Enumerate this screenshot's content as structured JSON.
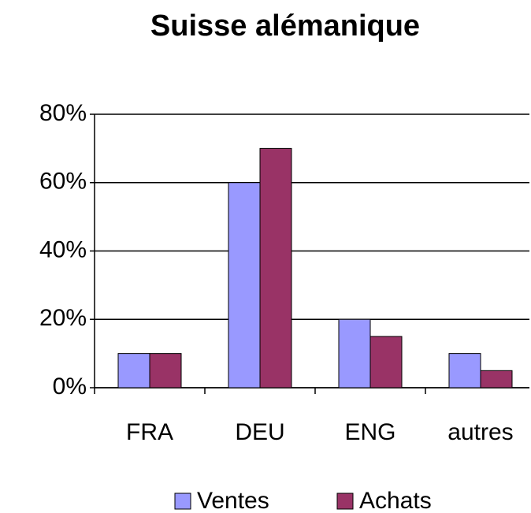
{
  "chart_data": {
    "type": "bar",
    "title": "Suisse alémanique",
    "categories": [
      "FRA",
      "DEU",
      "ENG",
      "autres"
    ],
    "series": [
      {
        "name": "Ventes",
        "color": "#9999ff",
        "values": [
          10,
          60,
          20,
          10
        ]
      },
      {
        "name": "Achats",
        "color": "#993366",
        "values": [
          10,
          70,
          15,
          5
        ]
      }
    ],
    "ylim": [
      0,
      80
    ],
    "yticks": [
      {
        "value": 0,
        "label": "0%"
      },
      {
        "value": 20,
        "label": "20%"
      },
      {
        "value": 40,
        "label": "40%"
      },
      {
        "value": 60,
        "label": "60%"
      },
      {
        "value": 80,
        "label": "80%"
      }
    ],
    "grid": true,
    "legend": "bottom"
  }
}
